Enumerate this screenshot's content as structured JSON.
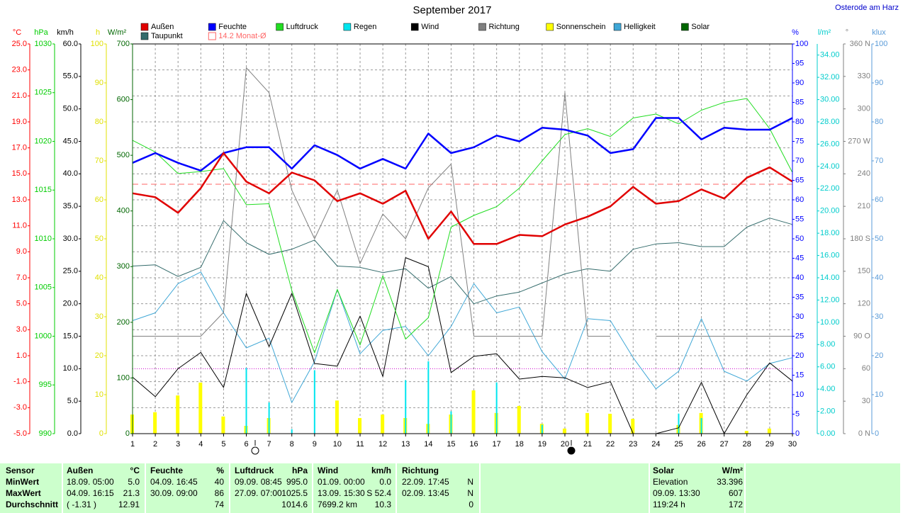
{
  "chart_data": {
    "type": "line",
    "title": "September 2017",
    "location": "Osterode am Harz",
    "x": [
      1,
      2,
      3,
      4,
      5,
      6,
      7,
      8,
      9,
      10,
      11,
      12,
      13,
      14,
      15,
      16,
      17,
      18,
      19,
      20,
      21,
      22,
      23,
      24,
      25,
      26,
      27,
      28,
      29,
      30
    ],
    "xlim": [
      1,
      30
    ],
    "grid": true,
    "axes": {
      "temp": {
        "label": "°C",
        "color": "#ff0000",
        "ylim": [
          -5,
          25
        ],
        "yticks": [
          {
            "value": 25,
            "label": "25.0"
          },
          {
            "value": 23,
            "label": "23.0"
          },
          {
            "value": 21,
            "label": "21.0"
          },
          {
            "value": 19,
            "label": "19.0"
          },
          {
            "value": 17,
            "label": "17.0"
          },
          {
            "value": 15,
            "label": "15.0"
          },
          {
            "value": 13,
            "label": "13.0"
          },
          {
            "value": 11,
            "label": "11.0"
          },
          {
            "value": 9,
            "label": "9.0"
          },
          {
            "value": 7,
            "label": "7.0"
          },
          {
            "value": 5,
            "label": "5.0"
          },
          {
            "value": 3,
            "label": "3.0"
          },
          {
            "value": 1,
            "label": "1.0"
          },
          {
            "value": -1,
            "label": "-1.0"
          },
          {
            "value": -3,
            "label": "-3.0"
          },
          {
            "value": -5,
            "label": "-5.0"
          }
        ]
      },
      "pressure": {
        "label": "hPa",
        "color": "#00cc00",
        "ylim": [
          990,
          1030
        ],
        "yticks": [
          1030,
          1025,
          1020,
          1015,
          1010,
          1005,
          1000,
          995,
          990
        ]
      },
      "wind": {
        "label": "km/h",
        "color": "#000000",
        "ylim": [
          0,
          60
        ],
        "yticks": [
          {
            "value": 60,
            "label": "60.0"
          },
          {
            "value": 55,
            "label": "55.0"
          },
          {
            "value": 50,
            "label": "50.0"
          },
          {
            "value": 45,
            "label": "45.0"
          },
          {
            "value": 40,
            "label": "40.0"
          },
          {
            "value": 35,
            "label": "35.0"
          },
          {
            "value": 30,
            "label": "30.0"
          },
          {
            "value": 25,
            "label": "25.0"
          },
          {
            "value": 20,
            "label": "20.0"
          },
          {
            "value": 15,
            "label": "15.0"
          },
          {
            "value": 10,
            "label": "10.0"
          },
          {
            "value": 5,
            "label": "5.0"
          },
          {
            "value": 0,
            "label": "0.0"
          }
        ]
      },
      "hours": {
        "label": "h",
        "color": "#e0e000",
        "ylim": [
          0,
          100
        ],
        "yticks": [
          100,
          90,
          80,
          70,
          60,
          50,
          40,
          30,
          20,
          10,
          0
        ]
      },
      "solar": {
        "label": "W/m²",
        "color": "#006600",
        "ylim": [
          0,
          700
        ],
        "yticks": [
          700,
          600,
          500,
          400,
          300,
          200,
          100,
          0
        ]
      },
      "humidity": {
        "label": "%",
        "color": "#0000ff",
        "ylim": [
          0,
          100
        ],
        "yticks": [
          100,
          95,
          90,
          85,
          80,
          75,
          70,
          65,
          60,
          55,
          50,
          45,
          40,
          35,
          30,
          25,
          20,
          15,
          10,
          5,
          0
        ]
      },
      "rain": {
        "label": "l/m²",
        "color": "#00cccc",
        "ylim": [
          0,
          35
        ],
        "yticks": [
          {
            "value": 34,
            "label": "34.00"
          },
          {
            "value": 32,
            "label": "32.00"
          },
          {
            "value": 30,
            "label": "30.00"
          },
          {
            "value": 28,
            "label": "28.00"
          },
          {
            "value": 26,
            "label": "26.00"
          },
          {
            "value": 24,
            "label": "24.00"
          },
          {
            "value": 22,
            "label": "22.00"
          },
          {
            "value": 20,
            "label": "20.00"
          },
          {
            "value": 18,
            "label": "18.00"
          },
          {
            "value": 16,
            "label": "16.00"
          },
          {
            "value": 14,
            "label": "14.00"
          },
          {
            "value": 12,
            "label": "12.00"
          },
          {
            "value": 10,
            "label": "10.00"
          },
          {
            "value": 8,
            "label": "8.00"
          },
          {
            "value": 6,
            "label": "6.00"
          },
          {
            "value": 4,
            "label": "4.00"
          },
          {
            "value": 2,
            "label": "2.00"
          },
          {
            "value": 0,
            "label": "0.00"
          }
        ]
      },
      "direction": {
        "label": "°",
        "color": "#808080",
        "ylim": [
          0,
          360
        ],
        "yticks": [
          {
            "value": 360,
            "label": "360 N"
          },
          330,
          300,
          {
            "value": 270,
            "label": "270 W"
          },
          240,
          210,
          {
            "value": 180,
            "label": "180 S"
          },
          150,
          120,
          {
            "value": 90,
            "label": "90 O"
          },
          60,
          30,
          {
            "value": 0,
            "label": "0 N"
          }
        ]
      },
      "klux": {
        "label": "klux",
        "color": "#5a9bd8",
        "ylim": [
          0,
          100
        ],
        "yticks": [
          100,
          90,
          80,
          70,
          60,
          50,
          40,
          30,
          20,
          10,
          0
        ]
      }
    },
    "monthly_avg": {
      "value": 14.2,
      "label": "14.2 Monat-Ø",
      "color": "#ff6666"
    },
    "series": [
      {
        "name": "Außen",
        "color": "#e00000",
        "axis": "temp",
        "kind": "line",
        "width": 2.5,
        "values": [
          13.5,
          13.2,
          12.0,
          13.9,
          16.6,
          14.4,
          13.5,
          15.1,
          14.5,
          12.9,
          13.5,
          12.7,
          13.7,
          10.0,
          12.1,
          9.6,
          9.6,
          10.3,
          10.2,
          11.1,
          11.7,
          12.5,
          14.0,
          12.7,
          12.9,
          13.8,
          13.1,
          14.7,
          15.5,
          14.4
        ]
      },
      {
        "name": "Feuchte",
        "color": "#0000ff",
        "axis": "humidity",
        "kind": "line",
        "width": 2.5,
        "values": [
          69.5,
          72,
          69.5,
          67.5,
          72,
          73.5,
          73.5,
          68,
          74,
          71.5,
          68,
          70.5,
          68,
          77,
          72,
          73.5,
          76.5,
          75,
          78.5,
          78,
          76.5,
          72,
          73,
          81,
          81,
          75.5,
          78.5,
          78,
          78,
          81
        ]
      },
      {
        "name": "Luftdruck",
        "color": "#22dd22",
        "axis": "pressure",
        "kind": "line",
        "width": 1,
        "values": [
          1020.1,
          1018.9,
          1016.7,
          1016.9,
          1017.2,
          1013.5,
          1013.6,
          1004.7,
          998.3,
          1004.8,
          999.1,
          1006.2,
          999.7,
          1001.9,
          1011.2,
          1012.4,
          1013.3,
          1015.2,
          1018.0,
          1020.7,
          1021.3,
          1020.5,
          1022.4,
          1022.8,
          1021.8,
          1023.2,
          1024.0,
          1024.4,
          1021.3,
          1016.8
        ]
      },
      {
        "name": "Regen",
        "color": "#00e5ee",
        "axis": "rain",
        "kind": "bar",
        "width": 2,
        "values": [
          0,
          0,
          0,
          0,
          0,
          5.9,
          2.8,
          0.4,
          5.7,
          0,
          0,
          0,
          4.8,
          6.5,
          2.0,
          0,
          4.6,
          0,
          0.8,
          0,
          0,
          0,
          0,
          0,
          1.8,
          1.4,
          0,
          0,
          0,
          0
        ]
      },
      {
        "name": "Wind",
        "color": "#000000",
        "axis": "wind",
        "kind": "line",
        "width": 1,
        "values": [
          8.7,
          5.7,
          10.0,
          12.5,
          7.1,
          21.6,
          13.4,
          21.6,
          10.8,
          10.4,
          18.1,
          8.8,
          27.1,
          25.7,
          9.4,
          11.9,
          12.3,
          8.4,
          8.8,
          8.6,
          7.1,
          8.0,
          0,
          0,
          0.9,
          7.9,
          0,
          6.0,
          10.9,
          8.1
        ]
      },
      {
        "name": "Richtung",
        "color": "#808080",
        "axis": "direction",
        "kind": "line",
        "width": 1,
        "values": [
          90,
          90,
          90,
          90,
          112,
          338,
          315,
          225,
          180,
          225,
          157,
          203,
          180,
          227,
          249,
          90,
          90,
          90,
          90,
          315,
          90,
          90,
          null,
          90,
          90,
          90,
          90,
          90,
          90,
          90
        ]
      },
      {
        "name": "Sonnenschein",
        "color": "#ffff00",
        "axis": "hours",
        "kind": "bar",
        "width": 5,
        "values": [
          4.9,
          5.5,
          9.8,
          13.1,
          4.4,
          2.0,
          4.0,
          0,
          0,
          8.5,
          4.0,
          4.9,
          4.0,
          2.5,
          4.9,
          11.1,
          5.3,
          7.1,
          2.5,
          1.3,
          5.3,
          5.1,
          3.8,
          0,
          2.2,
          5.3,
          0,
          0.7,
          1.3,
          0
        ]
      },
      {
        "name": "Helligkeit",
        "color": "#3fa7d6",
        "axis": "klux",
        "kind": "line",
        "width": 1,
        "values": [
          29,
          31,
          38.5,
          41.5,
          31,
          22,
          24.5,
          8,
          18.5,
          37,
          20.5,
          26.5,
          27.5,
          20,
          27.5,
          38.5,
          31,
          32.5,
          21,
          14,
          29.5,
          29,
          19.5,
          11.5,
          16,
          29.5,
          16,
          13.5,
          18,
          19.5
        ]
      },
      {
        "name": "Solar",
        "color": "#006600",
        "axis": "solar",
        "kind": "line",
        "width": 1,
        "values": [
          null,
          null,
          null,
          null,
          null,
          null,
          null,
          null,
          null,
          null,
          null,
          null,
          null,
          null,
          null,
          null,
          null,
          null,
          null,
          null,
          null,
          null,
          null,
          null,
          null,
          null,
          null,
          null,
          null,
          null
        ]
      },
      {
        "name": "Taupunkt",
        "color": "#336b6b",
        "axis": "temp",
        "kind": "line",
        "width": 1,
        "values": [
          7.9,
          8.0,
          7.1,
          7.8,
          11.4,
          9.7,
          8.8,
          9.2,
          9.9,
          7.9,
          7.8,
          7.4,
          7.7,
          6.2,
          7.1,
          5.0,
          5.6,
          5.9,
          6.6,
          7.3,
          7.7,
          7.5,
          9.2,
          9.6,
          9.7,
          9.4,
          9.4,
          10.9,
          11.6,
          11.1
        ]
      }
    ]
  },
  "stats": {
    "row_labels": {
      "sensor": "Sensor",
      "min": "MinWert",
      "max": "MaxWert",
      "avg": "Durchschnitt"
    },
    "columns": [
      {
        "name": "Außen",
        "unit": "°C",
        "min_at": "18.09. 05:00",
        "min": "5.0",
        "max_at": "04.09. 16:15",
        "max": "21.3",
        "avg_note": "( -1.31 )",
        "avg": "12.91"
      },
      {
        "name": "Feuchte",
        "unit": "%",
        "min_at": "04.09. 16:45",
        "min": "40",
        "max_at": "30.09. 09:00",
        "max": "86",
        "avg": "74"
      },
      {
        "name": "Luftdruck",
        "unit": "hPa",
        "min_at": "09.09. 08:45",
        "min": "995.0",
        "max_at": "27.09. 07:00",
        "max": "1025.5",
        "avg": "1014.6"
      },
      {
        "name": "Wind",
        "unit": "km/h",
        "min_at": "01.09. 00:00",
        "min": "0.0",
        "max_at": "13.09. 15:30",
        "max": "S 52.4",
        "avg_note": "7699.2 km",
        "avg": "10.3"
      },
      {
        "name": "Richtung",
        "min_at": "22.09. 17:45",
        "min": "N",
        "max_at": "02.09. 13:45",
        "max": "N",
        "avg": "0"
      },
      {
        "name": "Solar",
        "unit": "W/m²",
        "min_at": "Elevation",
        "min": "33.396",
        "max_at": "09.09. 13:30",
        "max": "607",
        "avg_note": "119:24 h",
        "avg": "172"
      }
    ]
  }
}
